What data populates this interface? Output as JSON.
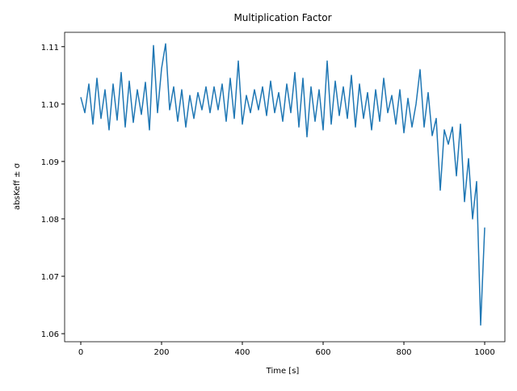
{
  "chart_data": {
    "type": "line",
    "title": "Multiplication Factor",
    "x_label": "Time [s]",
    "y_label": "absKeff ± σ",
    "x": [
      0,
      10,
      20,
      30,
      40,
      50,
      60,
      70,
      80,
      90,
      100,
      110,
      120,
      130,
      140,
      150,
      160,
      170,
      180,
      190,
      200,
      210,
      220,
      230,
      240,
      250,
      260,
      270,
      280,
      290,
      300,
      310,
      320,
      330,
      340,
      350,
      360,
      370,
      380,
      390,
      400,
      410,
      420,
      430,
      440,
      450,
      460,
      470,
      480,
      490,
      500,
      510,
      520,
      530,
      540,
      550,
      560,
      570,
      580,
      590,
      600,
      610,
      620,
      630,
      640,
      650,
      660,
      670,
      680,
      690,
      700,
      710,
      720,
      730,
      740,
      750,
      760,
      770,
      780,
      790,
      800,
      810,
      820,
      830,
      840,
      850,
      860,
      870,
      880,
      890,
      900,
      910,
      920,
      930,
      940,
      950,
      960,
      970,
      980,
      990,
      1000
    ],
    "series": [
      {
        "color": "#1f77b4",
        "values": [
          1.1012,
          1.0985,
          1.1035,
          1.0965,
          1.1045,
          1.0975,
          1.1025,
          1.0955,
          1.1035,
          1.0972,
          1.1055,
          1.096,
          1.104,
          1.0968,
          1.1025,
          1.0982,
          1.1038,
          1.0955,
          1.1102,
          1.0985,
          1.1062,
          1.1105,
          1.099,
          1.103,
          1.097,
          1.1025,
          1.096,
          1.1015,
          1.0975,
          1.102,
          1.099,
          1.103,
          1.0985,
          1.103,
          1.099,
          1.1035,
          1.097,
          1.1045,
          1.0975,
          1.1075,
          1.0965,
          1.1015,
          1.0985,
          1.1025,
          1.099,
          1.103,
          1.098,
          1.104,
          1.0985,
          1.102,
          1.097,
          1.1035,
          1.0985,
          1.1055,
          1.096,
          1.1045,
          1.0943,
          1.103,
          1.097,
          1.1025,
          1.0955,
          1.1075,
          1.0965,
          1.104,
          1.098,
          1.103,
          1.0975,
          1.105,
          1.096,
          1.1035,
          1.0975,
          1.102,
          1.0955,
          1.1025,
          1.097,
          1.1045,
          1.0985,
          1.1015,
          1.0965,
          1.1025,
          1.095,
          1.101,
          1.096,
          1.1,
          1.106,
          1.096,
          1.102,
          1.0945,
          1.0975,
          1.085,
          1.0955,
          1.093,
          1.096,
          1.0875,
          1.0965,
          1.083,
          1.0905,
          1.08,
          1.0865,
          1.0615,
          1.0785
        ]
      }
    ],
    "xlim": [
      -40,
      1050
    ],
    "xticks": [
      0,
      200,
      400,
      600,
      800,
      1000
    ],
    "ylim": [
      1.0586,
      1.1125
    ],
    "yticks": [
      1.06,
      1.07,
      1.08,
      1.09,
      {
        "value": 1.1,
        "label": "1.10"
      },
      1.11
    ]
  }
}
